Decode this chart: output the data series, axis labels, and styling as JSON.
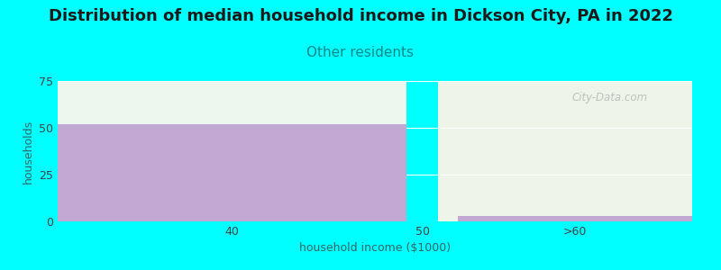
{
  "title": "Distribution of median household income in Dickson City, PA in 2022",
  "subtitle": "Other residents",
  "xlabel": "household income ($1000)",
  "ylabel": "households",
  "background_color": "#00FFFF",
  "panel_left_color": "#edf7ed",
  "panel_right_color": "#eef5e8",
  "bar_color": "#c4a8d4",
  "title_fontsize": 13,
  "subtitle_fontsize": 11,
  "subtitle_color": "#008888",
  "axis_label_fontsize": 9,
  "tick_label_fontsize": 9,
  "ylabel_color": "#336666",
  "xlabel_color": "#336666",
  "ytick_color": "#444444",
  "xtick_color": "#444444",
  "ylim": [
    0,
    75
  ],
  "yticks": [
    0,
    25,
    50,
    75
  ],
  "bar1_value": 52,
  "bar2_value": 3,
  "watermark": "City-Data.com"
}
